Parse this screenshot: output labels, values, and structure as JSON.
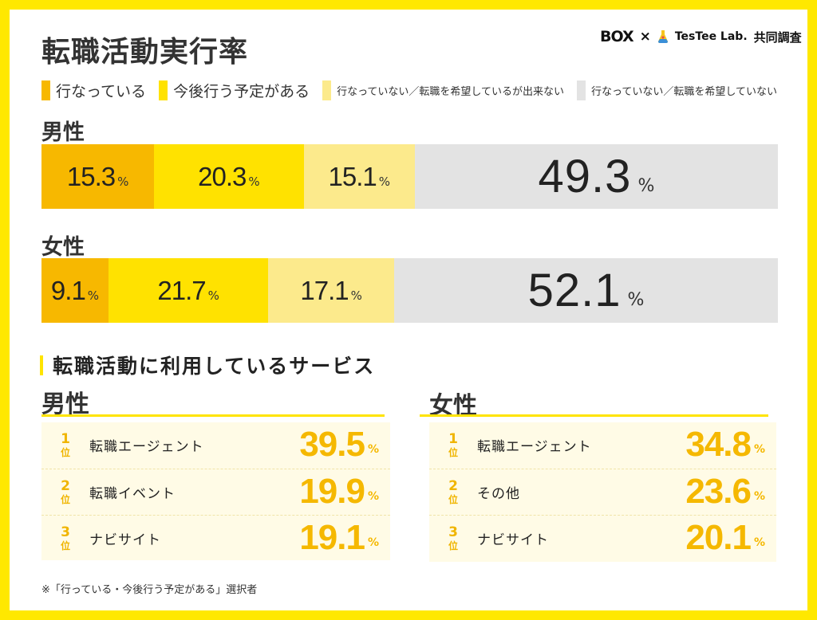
{
  "title": "転職活動実行率",
  "brand": {
    "box": "BOX",
    "times": "×",
    "partner": "TesTee Lab.",
    "suffix": "共同調査"
  },
  "colors": {
    "c1": "#f7b800",
    "c2": "#ffe200",
    "c3": "#fcea8c",
    "c4": "#e3e3e3"
  },
  "legend": [
    {
      "label": "行なっている"
    },
    {
      "label": "今後行う予定がある"
    },
    {
      "label": "行なっていない／転職を希望しているが出来ない"
    },
    {
      "label": "行なっていない／転職を希望していない"
    }
  ],
  "chart_data": {
    "type": "bar",
    "title": "転職活動実行率",
    "stacked": true,
    "orientation": "horizontal",
    "categories": [
      "男性",
      "女性"
    ],
    "series": [
      {
        "name": "行なっている",
        "values": [
          15.3,
          9.1
        ]
      },
      {
        "name": "今後行う予定がある",
        "values": [
          20.3,
          21.7
        ]
      },
      {
        "name": "行なっていない／転職を希望しているが出来ない",
        "values": [
          15.1,
          17.1
        ]
      },
      {
        "name": "行なっていない／転職を希望していない",
        "values": [
          49.3,
          52.1
        ]
      }
    ],
    "unit": "%",
    "xlim": [
      0,
      100
    ]
  },
  "services": {
    "heading": "転職活動に利用しているサービス",
    "rank_suffix": "位",
    "pct": "%",
    "male": {
      "label": "男性",
      "items": [
        {
          "rank": "1",
          "name": "転職エージェント",
          "value": "39.5"
        },
        {
          "rank": "2",
          "name": "転職イベント",
          "value": "19.9"
        },
        {
          "rank": "3",
          "name": "ナビサイト",
          "value": "19.1"
        }
      ]
    },
    "female": {
      "label": "女性",
      "items": [
        {
          "rank": "1",
          "name": "転職エージェント",
          "value": "34.8"
        },
        {
          "rank": "2",
          "name": "その他",
          "value": "23.6"
        },
        {
          "rank": "3",
          "name": "ナビサイト",
          "value": "20.1"
        }
      ]
    }
  },
  "footnote": "※「行っている・今後行う予定がある」選択者"
}
